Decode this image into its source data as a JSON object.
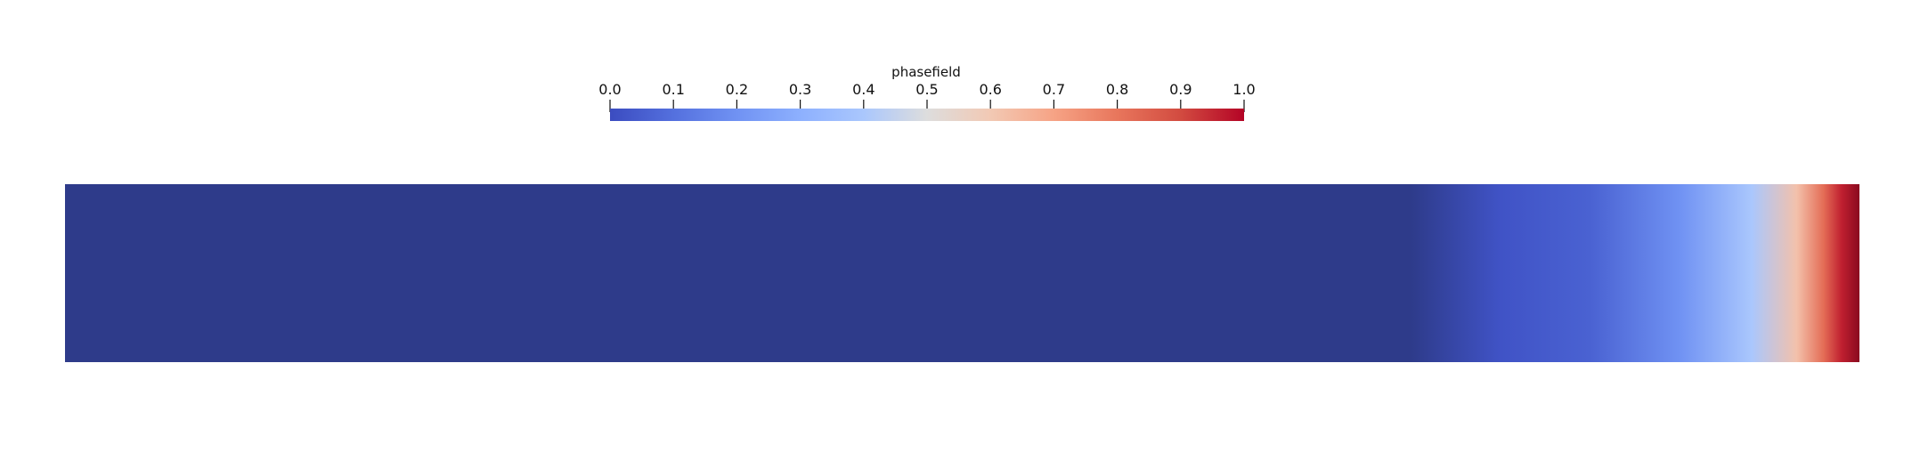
{
  "colorbar": {
    "title": "phasefield",
    "range": [
      0.0,
      1.0
    ],
    "ticks": [
      "0.0",
      "0.1",
      "0.2",
      "0.3",
      "0.4",
      "0.5",
      "0.6",
      "0.7",
      "0.8",
      "0.9",
      "1.0"
    ],
    "colormap": [
      {
        "value": 0.0,
        "color": "#3b4cc0"
      },
      {
        "value": 0.1,
        "color": "#5470de"
      },
      {
        "value": 0.2,
        "color": "#7092f3"
      },
      {
        "value": 0.3,
        "color": "#8db0fe"
      },
      {
        "value": 0.4,
        "color": "#aac7fd"
      },
      {
        "value": 0.5,
        "color": "#dddddd"
      },
      {
        "value": 0.6,
        "color": "#f2c9b4"
      },
      {
        "value": 0.7,
        "color": "#f6a385"
      },
      {
        "value": 0.8,
        "color": "#e8765c"
      },
      {
        "value": 0.9,
        "color": "#d24b40"
      },
      {
        "value": 1.0,
        "color": "#b40426"
      }
    ]
  },
  "field": {
    "profile_position_fraction": [
      0.0,
      0.75,
      0.8,
      0.85,
      0.9,
      0.94,
      0.965,
      0.98,
      0.99,
      1.0
    ],
    "profile_value": [
      0.0,
      0.0,
      0.02,
      0.06,
      0.2,
      0.4,
      0.62,
      0.82,
      0.96,
      1.0
    ],
    "low_color": "#2e3b8a",
    "high_color": "#8a0a1f"
  }
}
